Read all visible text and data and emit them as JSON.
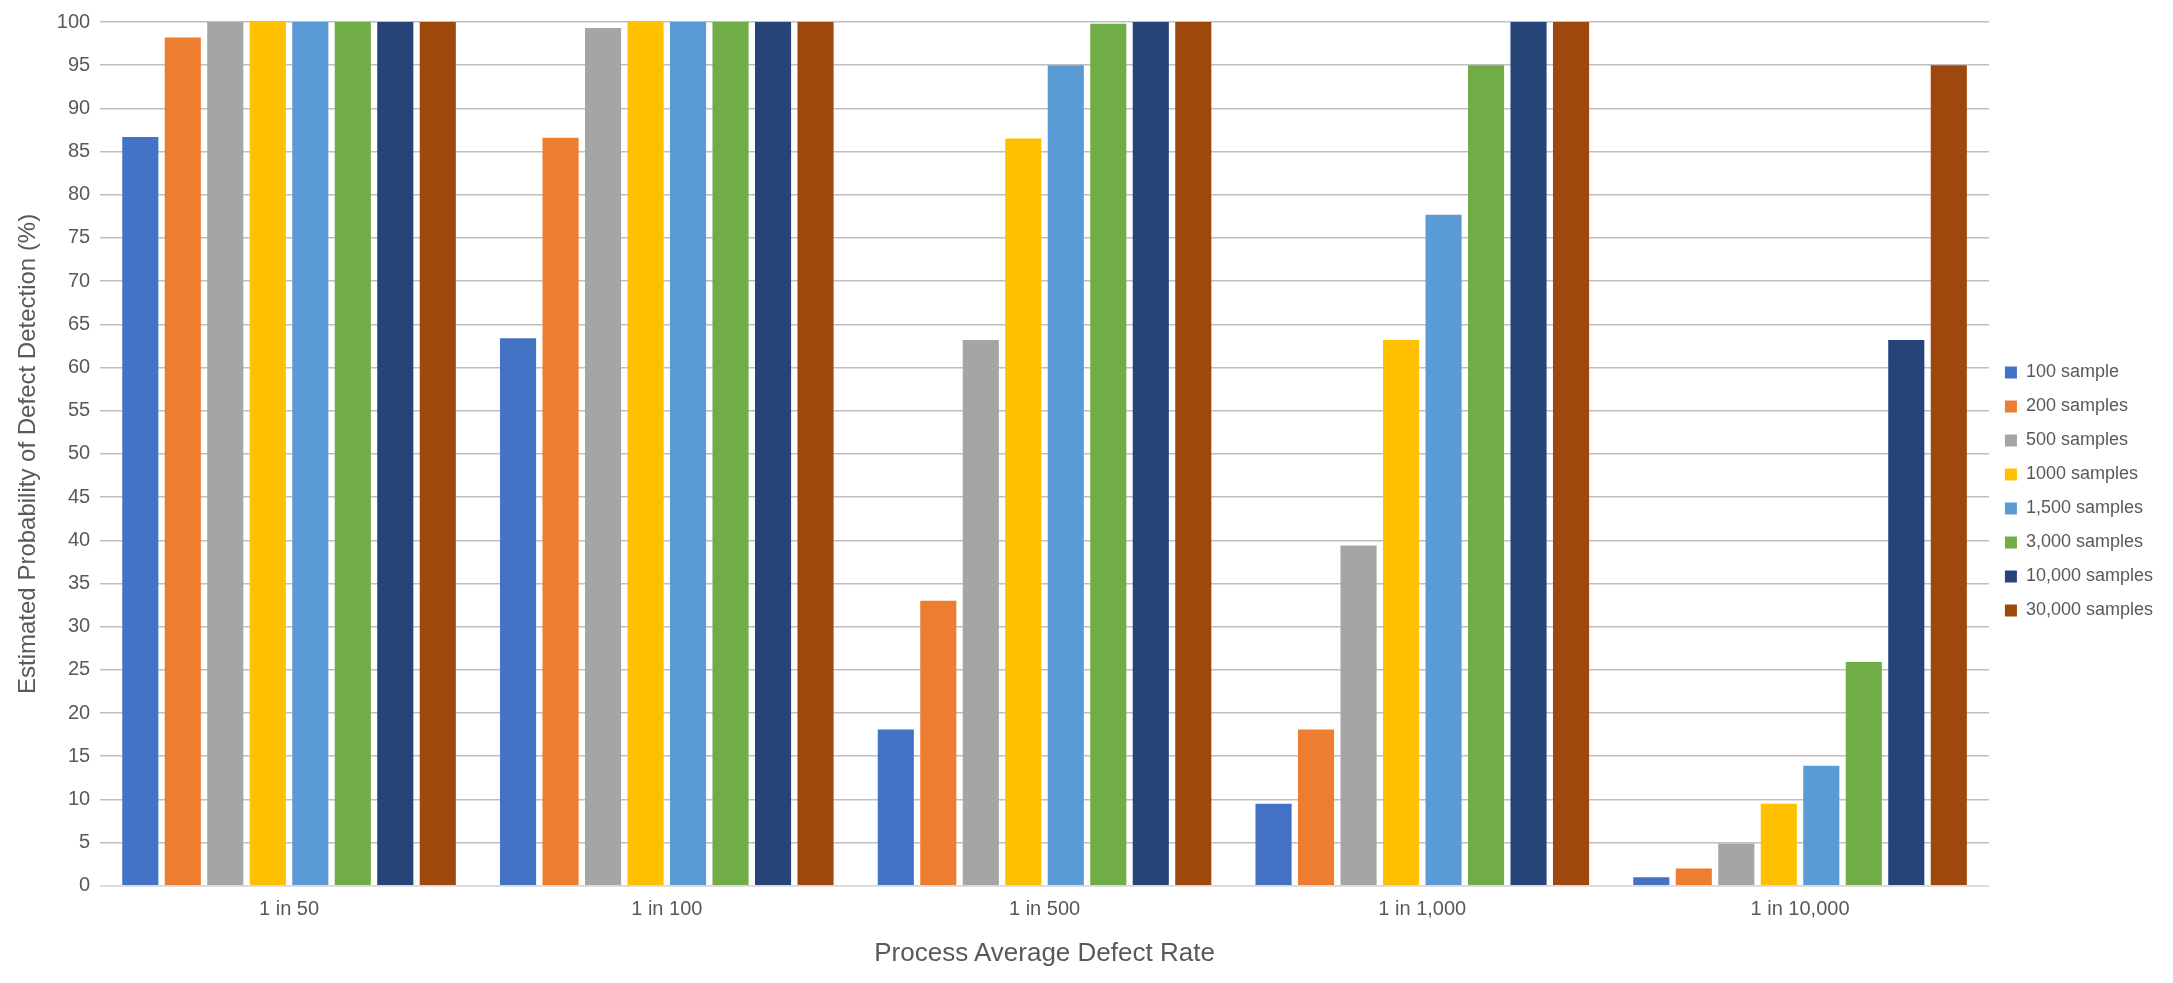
{
  "chart_data": {
    "type": "bar",
    "xlabel": "Process Average Defect Rate",
    "ylabel": "Estimated Probability of Defect Detection (%)",
    "categories": [
      "1 in 50",
      "1 in 100",
      "1 in 500",
      "1 in 1,000",
      "1 in 10,000"
    ],
    "series": [
      {
        "name": "100 sample",
        "color": "#4472c4",
        "values": [
          86.7,
          63.4,
          18.1,
          9.5,
          1.0
        ]
      },
      {
        "name": "200 samples",
        "color": "#ed7d31",
        "values": [
          98.2,
          86.6,
          33.0,
          18.1,
          2.0
        ]
      },
      {
        "name": "500 samples",
        "color": "#a5a5a5",
        "values": [
          100,
          99.3,
          63.2,
          39.4,
          4.9
        ]
      },
      {
        "name": "1000 samples",
        "color": "#ffc000",
        "values": [
          100,
          100,
          86.5,
          63.2,
          9.5
        ]
      },
      {
        "name": "1,500 samples",
        "color": "#5b9bd5",
        "values": [
          100,
          100,
          95.0,
          77.7,
          13.9
        ]
      },
      {
        "name": "3,000 samples",
        "color": "#70ad47",
        "values": [
          100,
          100,
          99.8,
          95.0,
          25.9
        ]
      },
      {
        "name": "10,000 samples",
        "color": "#264478",
        "values": [
          100,
          100,
          100,
          100,
          63.2
        ]
      },
      {
        "name": "30,000 samples",
        "color": "#9e480e",
        "values": [
          100,
          100,
          100,
          100,
          95.0
        ]
      }
    ],
    "ylim": [
      0,
      100
    ],
    "yticks": [
      0,
      5,
      10,
      15,
      20,
      25,
      30,
      35,
      40,
      45,
      50,
      55,
      60,
      65,
      70,
      75,
      80,
      85,
      90,
      95,
      100
    ],
    "grid": "y",
    "legend": "right"
  }
}
